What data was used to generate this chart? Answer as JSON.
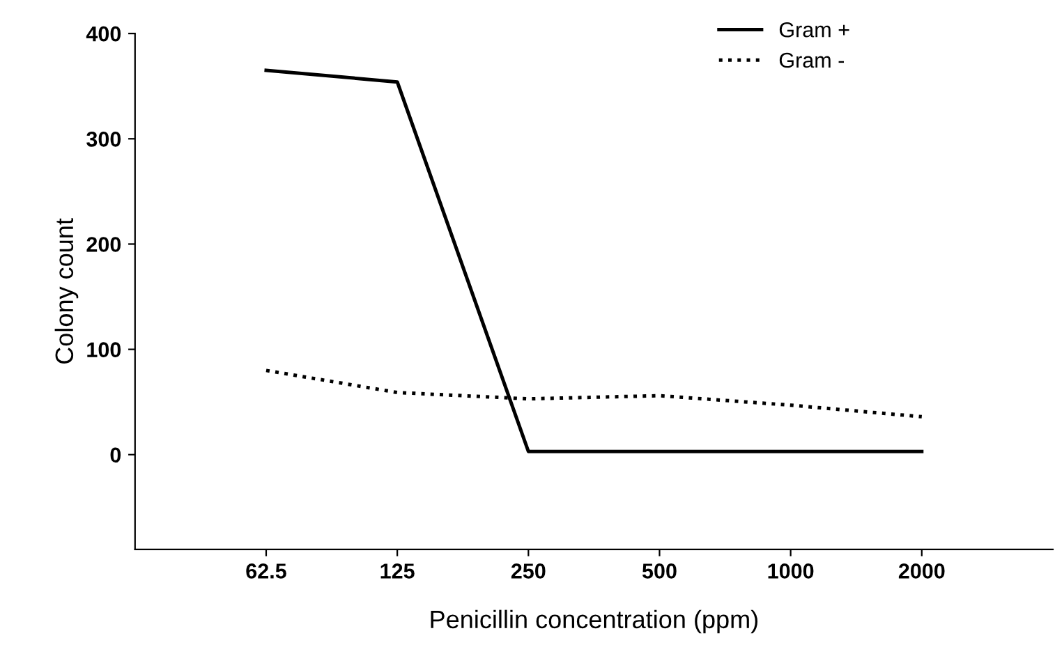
{
  "chart_data": {
    "type": "line",
    "xlabel": "Penicillin concentration (ppm)",
    "ylabel": "Colony count",
    "categories": [
      "62.5",
      "125",
      "250",
      "500",
      "1000",
      "2000"
    ],
    "series": [
      {
        "name": "Gram +",
        "color": "#000000",
        "line_style": "solid",
        "values": [
          365,
          354,
          3,
          3,
          3,
          3
        ]
      },
      {
        "name": "Gram -",
        "color": "#000000",
        "line_style": "dotted",
        "values": [
          80,
          59,
          53,
          56,
          47,
          36
        ]
      }
    ],
    "ylim": [
      -90,
      400
    ],
    "yticks": [
      0,
      100,
      200,
      300,
      400
    ],
    "grid": false,
    "legend": "top right",
    "marker": "none"
  }
}
